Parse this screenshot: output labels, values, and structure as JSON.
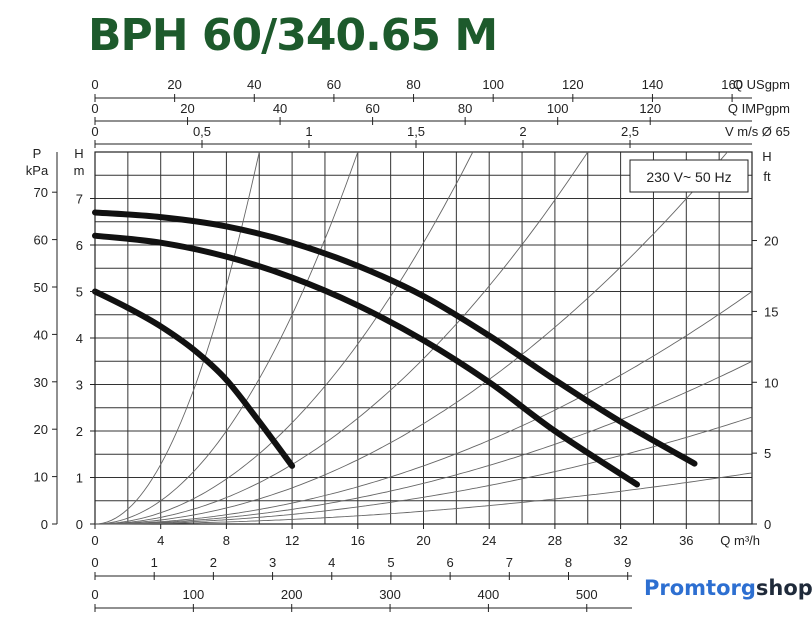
{
  "title": "BPH 60/340.65 M",
  "logo": {
    "part1": "Promtorg",
    "part2": "shop"
  },
  "chart_data": {
    "type": "line",
    "title": "BPH 60/340.65 M",
    "annotation": "230 V~ 50 Hz",
    "x_axis": {
      "label": "Q m³/h",
      "range": [
        0,
        40
      ],
      "ticks": [
        0,
        4,
        8,
        12,
        16,
        20,
        24,
        28,
        32,
        36
      ]
    },
    "y_axis_left_H": {
      "label_top": "H",
      "label_bottom": "m",
      "range": [
        0,
        8
      ],
      "ticks": [
        0,
        1,
        2,
        3,
        4,
        5,
        6,
        7
      ]
    },
    "y_axis_left_P": {
      "label_top": "P",
      "label_bottom": "kPa",
      "ticks": [
        0,
        10,
        20,
        30,
        40,
        50,
        60,
        70
      ]
    },
    "y_axis_right_H": {
      "label_top": "H",
      "label_bottom": "ft",
      "ticks": [
        0,
        5,
        10,
        15,
        20
      ]
    },
    "top_axes": [
      {
        "label": "Q USgpm",
        "ticks": [
          "0",
          "20",
          "40",
          "60",
          "80",
          "100",
          "120",
          "140",
          "160"
        ]
      },
      {
        "label": "Q IMPgpm",
        "ticks": [
          "0",
          "20",
          "40",
          "60",
          "80",
          "100",
          "120"
        ]
      },
      {
        "label": "V m/s Ø 65",
        "ticks": [
          "0",
          "0,5",
          "1",
          "1,5",
          "2",
          "2,5"
        ]
      }
    ],
    "bottom_axes": [
      {
        "label": "",
        "ticks": [
          "0",
          "1",
          "2",
          "3",
          "4",
          "5",
          "6",
          "7",
          "8",
          "9"
        ]
      },
      {
        "label": "",
        "ticks": [
          "0",
          "100",
          "200",
          "300",
          "400",
          "500"
        ]
      }
    ],
    "series": [
      {
        "x": [
          0,
          2,
          4,
          6,
          8,
          10,
          12
        ],
        "y": [
          5.0,
          4.65,
          4.25,
          3.75,
          3.1,
          2.2,
          1.25
        ]
      },
      {
        "x": [
          0,
          4,
          8,
          12,
          16,
          20,
          24,
          28,
          33
        ],
        "y": [
          6.2,
          6.05,
          5.75,
          5.3,
          4.7,
          3.95,
          3.05,
          2.0,
          0.85
        ]
      },
      {
        "x": [
          0,
          4,
          8,
          12,
          16,
          20,
          24,
          28,
          32,
          36.5
        ],
        "y": [
          6.7,
          6.6,
          6.4,
          6.05,
          5.55,
          4.9,
          4.05,
          3.1,
          2.2,
          1.3
        ]
      }
    ],
    "system_curves": [
      {
        "x_at_top": 10,
        "x_at_8m": 10
      },
      {
        "x_at_top": 16,
        "x_at_8m": 16
      },
      {
        "x_at_top": 23,
        "x_at_8m": 23
      },
      {
        "x_at_top": 30,
        "x_at_8m": 30
      },
      {
        "x_at_top": 38.5,
        "x_at_8m": 38.5
      },
      {
        "x_at_top": 40,
        "y_at_end": 5.0
      },
      {
        "x_at_top": 40,
        "y_at_end": 3.5
      },
      {
        "x_at_top": 40,
        "y_at_end": 2.3
      },
      {
        "x_at_top": 40,
        "y_at_end": 1.1
      }
    ],
    "grid": true
  }
}
